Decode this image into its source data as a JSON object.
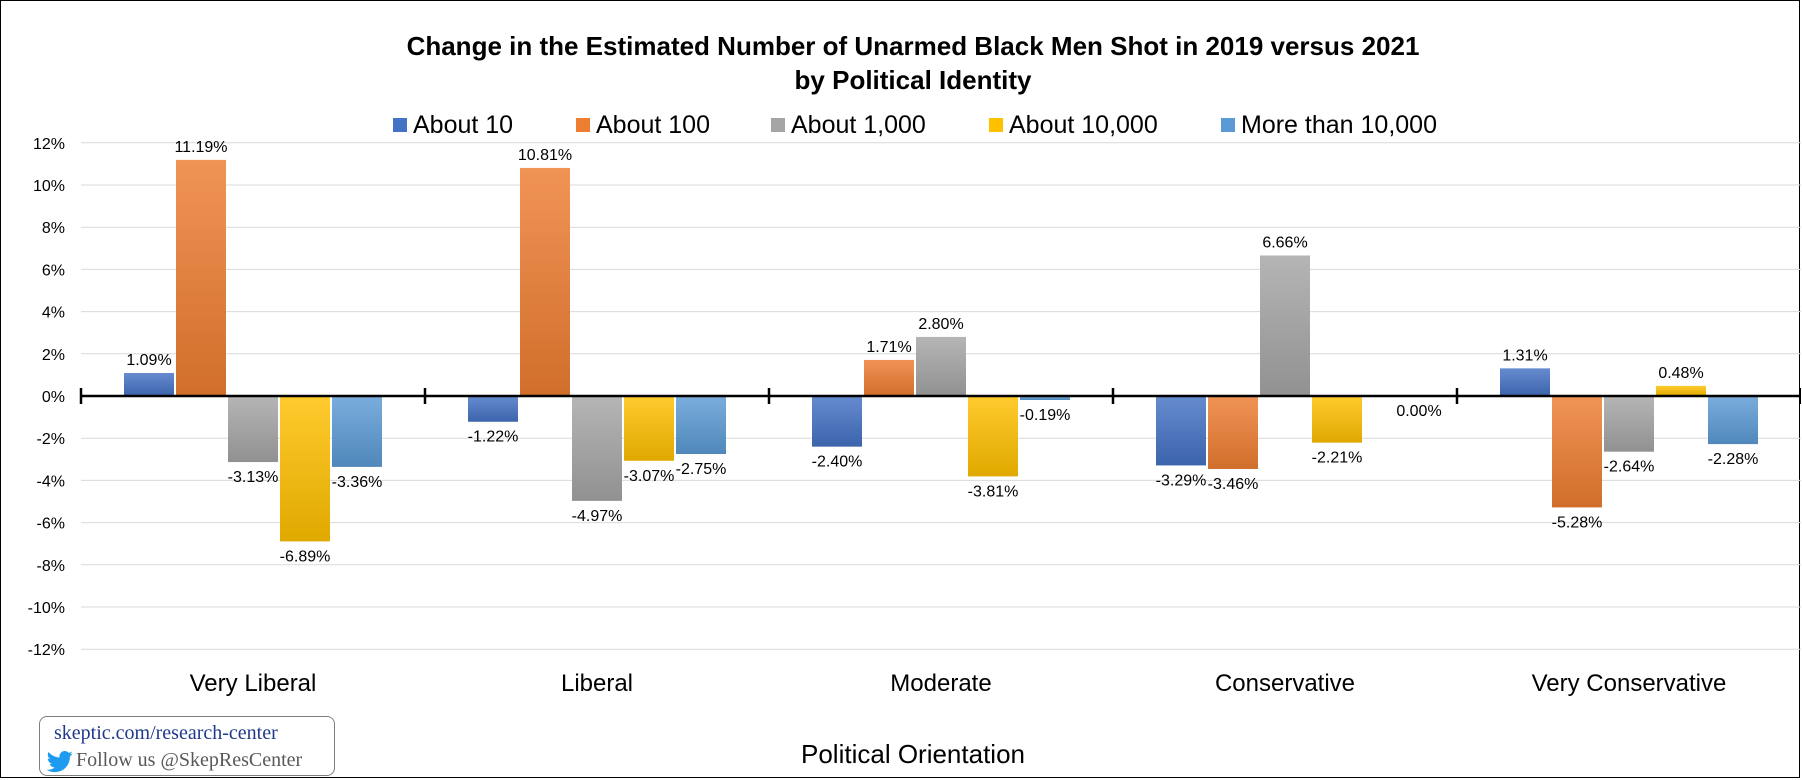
{
  "chart_data": {
    "type": "bar",
    "title": "Change in the Estimated Number of  Unarmed Black Men Shot in 2019 versus 2021",
    "subtitle": "by Political Identity",
    "xlabel": "Political Orientation",
    "ylabel": "",
    "categories": [
      "Very Liberal",
      "Liberal",
      "Moderate",
      "Conservative",
      "Very Conservative"
    ],
    "series": [
      {
        "name": "About 10",
        "color": "#4472C4",
        "values": [
          1.09,
          -1.22,
          -2.4,
          -3.29,
          1.31
        ]
      },
      {
        "name": "About 100",
        "color": "#ED7D31",
        "values": [
          11.19,
          10.81,
          1.71,
          -3.46,
          -5.28
        ]
      },
      {
        "name": "About 1,000",
        "color": "#A5A5A5",
        "values": [
          -3.13,
          -4.97,
          2.8,
          6.66,
          -2.64
        ]
      },
      {
        "name": "About 10,000",
        "color": "#FFC000",
        "values": [
          -6.89,
          -3.07,
          -3.81,
          -2.21,
          0.48
        ]
      },
      {
        "name": "More than 10,000",
        "color": "#5B9BD5",
        "values": [
          -3.36,
          -2.75,
          -0.19,
          0.0,
          -2.28
        ]
      }
    ],
    "data_labels": [
      [
        "1.09%",
        "-1.22%",
        "-2.40%",
        "-3.29%",
        "1.31%"
      ],
      [
        "11.19%",
        "10.81%",
        "1.71%",
        "-3.46%",
        "-5.28%"
      ],
      [
        "-3.13%",
        "-4.97%",
        "2.80%",
        "6.66%",
        "-2.64%"
      ],
      [
        "-6.89%",
        "-3.07%",
        "-3.81%",
        "-2.21%",
        "0.48%"
      ],
      [
        "-3.36%",
        "-2.75%",
        "-0.19%",
        "0.00%",
        "-2.28%"
      ]
    ],
    "ylim": [
      -12,
      12
    ],
    "yticks": [
      12,
      10,
      8,
      6,
      4,
      2,
      0,
      -2,
      -4,
      -6,
      -8,
      -10,
      -12
    ],
    "ytick_labels": [
      "12%",
      "10%",
      "8%",
      "6%",
      "4%",
      "2%",
      "0%",
      "-2%",
      "-4%",
      "-6%",
      "-8%",
      "-10%",
      "-12%"
    ],
    "grid": true,
    "legend_position": "top"
  },
  "badge": {
    "site": "skeptic.com/research-center",
    "follow": "Follow us @SkepResCenter"
  }
}
